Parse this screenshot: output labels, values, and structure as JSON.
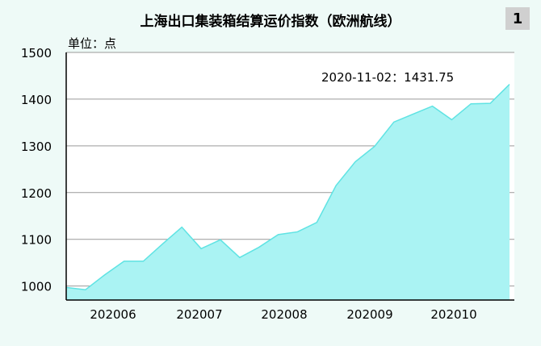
{
  "chart_data": {
    "type": "area",
    "title": "上海出口集装箱结算运价指数（欧洲航线）",
    "page_number": "1",
    "unit_label": "单位：点",
    "ylim": [
      970,
      1500
    ],
    "yticks": [
      1000,
      1100,
      1200,
      1300,
      1400,
      1500
    ],
    "x_tick_labels": [
      "202006",
      "202007",
      "202008",
      "202009",
      "202010"
    ],
    "annotation": "2020-11-02：1431.75",
    "grid": true,
    "fill_color": "#aaf3f3",
    "line_color": "#5fe3e3",
    "series": [
      {
        "values": [
          997,
          992,
          1024,
          1053,
          1053,
          1090,
          1126,
          1080,
          1099,
          1061,
          1083,
          1110,
          1116,
          1136,
          1215,
          1266,
          1299,
          1351,
          1368,
          1385,
          1356,
          1390,
          1391,
          1431.75
        ]
      }
    ]
  }
}
